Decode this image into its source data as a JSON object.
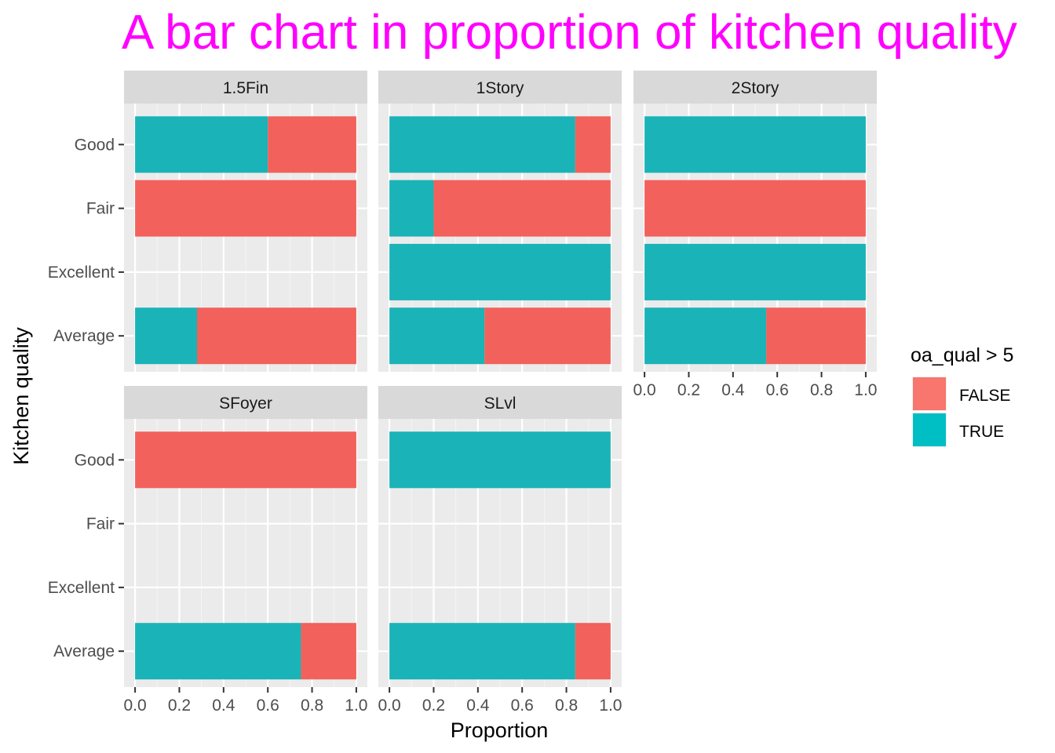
{
  "chart_data": {
    "type": "bar",
    "orientation": "horizontal",
    "stacked": "proportion",
    "title": "A bar chart in proportion of kitchen quality",
    "title_color": "#FF00FF",
    "xlabel": "Proportion",
    "ylabel": "Kitchen quality",
    "xlim": [
      0,
      1
    ],
    "x_ticks": [
      "0.0",
      "0.2",
      "0.4",
      "0.6",
      "0.8",
      "1.0"
    ],
    "categories": [
      "Good",
      "Fair",
      "Excellent",
      "Average"
    ],
    "grid": true,
    "legend": {
      "title": "oa_qual > 5",
      "position": "right",
      "entries": [
        {
          "label": "FALSE",
          "color": "#F8766D"
        },
        {
          "label": "TRUE",
          "color": "#00BFC4"
        }
      ]
    },
    "series_colors": {
      "TRUE": "#1AB3B8",
      "FALSE": "#F2615B"
    },
    "facets": [
      {
        "name": "1.5Fin",
        "bars": [
          {
            "category": "Good",
            "TRUE": 0.6,
            "FALSE": 0.4
          },
          {
            "category": "Fair",
            "TRUE": 0.0,
            "FALSE": 1.0
          },
          {
            "category": "Average",
            "TRUE": 0.28,
            "FALSE": 0.72
          }
        ]
      },
      {
        "name": "1Story",
        "bars": [
          {
            "category": "Good",
            "TRUE": 0.84,
            "FALSE": 0.16
          },
          {
            "category": "Fair",
            "TRUE": 0.2,
            "FALSE": 0.8
          },
          {
            "category": "Excellent",
            "TRUE": 1.0,
            "FALSE": 0.0
          },
          {
            "category": "Average",
            "TRUE": 0.43,
            "FALSE": 0.57
          }
        ]
      },
      {
        "name": "2Story",
        "bars": [
          {
            "category": "Good",
            "TRUE": 1.0,
            "FALSE": 0.0
          },
          {
            "category": "Fair",
            "TRUE": 0.0,
            "FALSE": 1.0
          },
          {
            "category": "Excellent",
            "TRUE": 1.0,
            "FALSE": 0.0
          },
          {
            "category": "Average",
            "TRUE": 0.55,
            "FALSE": 0.45
          }
        ]
      },
      {
        "name": "SFoyer",
        "bars": [
          {
            "category": "Good",
            "TRUE": 0.0,
            "FALSE": 1.0
          },
          {
            "category": "Average",
            "TRUE": 0.75,
            "FALSE": 0.25
          }
        ]
      },
      {
        "name": "SLvl",
        "bars": [
          {
            "category": "Good",
            "TRUE": 1.0,
            "FALSE": 0.0
          },
          {
            "category": "Average",
            "TRUE": 0.84,
            "FALSE": 0.16
          }
        ]
      }
    ]
  }
}
